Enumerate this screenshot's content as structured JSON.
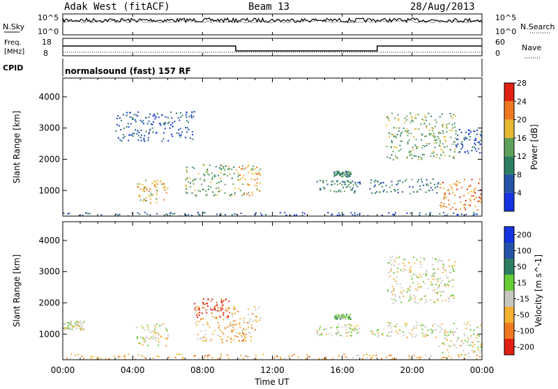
{
  "header": {
    "title": "Adak West (fitACF)",
    "beam": "Beam 13",
    "date": "28/Aug/2013"
  },
  "top_panels": {
    "nsky_label": "N.Sky",
    "nsky_ticks": [
      "10^5",
      "10^0"
    ],
    "nsearch_label": "N.Search",
    "nsearch_ticks": [
      "10^5",
      "10^0"
    ],
    "freq_label_1": "Freq.",
    "freq_label_2": "[MHz]",
    "freq_ticks": [
      "18",
      "8"
    ],
    "nave_label": "Nave",
    "nave_ticks": [
      "60",
      "0"
    ],
    "cpid_label": "CPID",
    "cpid_text": "normalsound (fast) 157 RF"
  },
  "chart_data": [
    {
      "type": "line",
      "name": "frequency-nave-panel",
      "title": "",
      "ylabel": "Freq. [MHz]",
      "y2label": "Nave",
      "ylim": [
        8,
        18
      ],
      "y2lim": [
        0,
        60
      ],
      "x_hours": [
        0,
        9.9,
        9.9,
        18.0,
        18.0,
        24
      ],
      "freq_high_low": [
        1,
        1,
        0,
        0,
        1,
        1
      ],
      "nave_level": [
        6,
        6,
        6,
        6,
        6,
        6
      ]
    },
    {
      "type": "heatmap",
      "name": "power-panel",
      "xlabel": "",
      "ylabel": "Slant Range [km]",
      "yticks": [
        "1000",
        "2000",
        "3000",
        "4000"
      ],
      "ylim": [
        180,
        4600
      ],
      "colorbar_label": "Power [dB]",
      "colorbar_ticks": [
        "4",
        "8",
        "12",
        "16",
        "20",
        "24",
        "28"
      ],
      "colorbar_colors": [
        "#1533e0",
        "#2651a8",
        "#2e7f62",
        "#5fa05a",
        "#e8b830",
        "#f07a20",
        "#e02010"
      ],
      "regions": [
        {
          "t0": 4.2,
          "t1": 6.0,
          "r0": 600,
          "r1": 1350,
          "level": 4
        },
        {
          "t0": 7.0,
          "t1": 10.0,
          "r0": 850,
          "r1": 1850,
          "level": 3
        },
        {
          "t0": 10.0,
          "t1": 11.3,
          "r0": 850,
          "r1": 1850,
          "level": 4
        },
        {
          "t0": 3.0,
          "t1": 7.5,
          "r0": 2600,
          "r1": 3550,
          "level": 1
        },
        {
          "t0": 14.5,
          "t1": 17.0,
          "r0": 950,
          "r1": 1350,
          "level": 2
        },
        {
          "t0": 15.5,
          "t1": 16.5,
          "r0": 1450,
          "r1": 1650,
          "level": 2
        },
        {
          "t0": 17.5,
          "t1": 21.5,
          "r0": 900,
          "r1": 1400,
          "level": 2
        },
        {
          "t0": 18.5,
          "t1": 22.5,
          "r0": 2000,
          "r1": 3500,
          "level": 3
        },
        {
          "t0": 21.5,
          "t1": 24.0,
          "r0": 400,
          "r1": 1400,
          "level": 5
        },
        {
          "t0": 22.5,
          "t1": 24.0,
          "r0": 2200,
          "r1": 3000,
          "level": 1
        },
        {
          "t0": 0.0,
          "t1": 24.0,
          "r0": 180,
          "r1": 320,
          "level": 1
        }
      ]
    },
    {
      "type": "heatmap",
      "name": "velocity-panel",
      "xlabel": "Time UT",
      "ylabel": "Slant Range [km]",
      "yticks": [
        "1000",
        "2000",
        "3000",
        "4000"
      ],
      "ylim": [
        180,
        4600
      ],
      "xticks": [
        "00:00",
        "04:00",
        "08:00",
        "12:00",
        "16:00",
        "20:00",
        "00:00"
      ],
      "colorbar_label": "Velocity [m s^-1]",
      "colorbar_ticks": [
        "200",
        "100",
        "50",
        "15",
        "-15",
        "-50",
        "-100",
        "-200"
      ],
      "colorbar_colors": [
        "#1533e0",
        "#2651a8",
        "#2e7f62",
        "#66cc33",
        "#c8c8c0",
        "#f4b030",
        "#f07a20",
        "#e02010"
      ],
      "regions": [
        {
          "t0": 0.0,
          "t1": 1.2,
          "r0": 1150,
          "r1": 1450,
          "level": 4
        },
        {
          "t0": 4.2,
          "t1": 6.0,
          "r0": 650,
          "r1": 1350,
          "level": 4
        },
        {
          "t0": 7.5,
          "t1": 11.3,
          "r0": 750,
          "r1": 1900,
          "level": 5
        },
        {
          "t0": 7.5,
          "t1": 9.5,
          "r0": 1550,
          "r1": 2150,
          "level": 7
        },
        {
          "t0": 14.5,
          "t1": 17.0,
          "r0": 950,
          "r1": 1350,
          "level": 4
        },
        {
          "t0": 15.5,
          "t1": 16.5,
          "r0": 1500,
          "r1": 1650,
          "level": 3
        },
        {
          "t0": 17.5,
          "t1": 21.5,
          "r0": 900,
          "r1": 1400,
          "level": 4
        },
        {
          "t0": 18.5,
          "t1": 22.5,
          "r0": 2000,
          "r1": 3500,
          "level": 4
        },
        {
          "t0": 21.5,
          "t1": 24.0,
          "r0": 350,
          "r1": 1400,
          "level": 4
        },
        {
          "t0": 0.0,
          "t1": 24.0,
          "r0": 180,
          "r1": 380,
          "level": 5
        }
      ]
    }
  ]
}
